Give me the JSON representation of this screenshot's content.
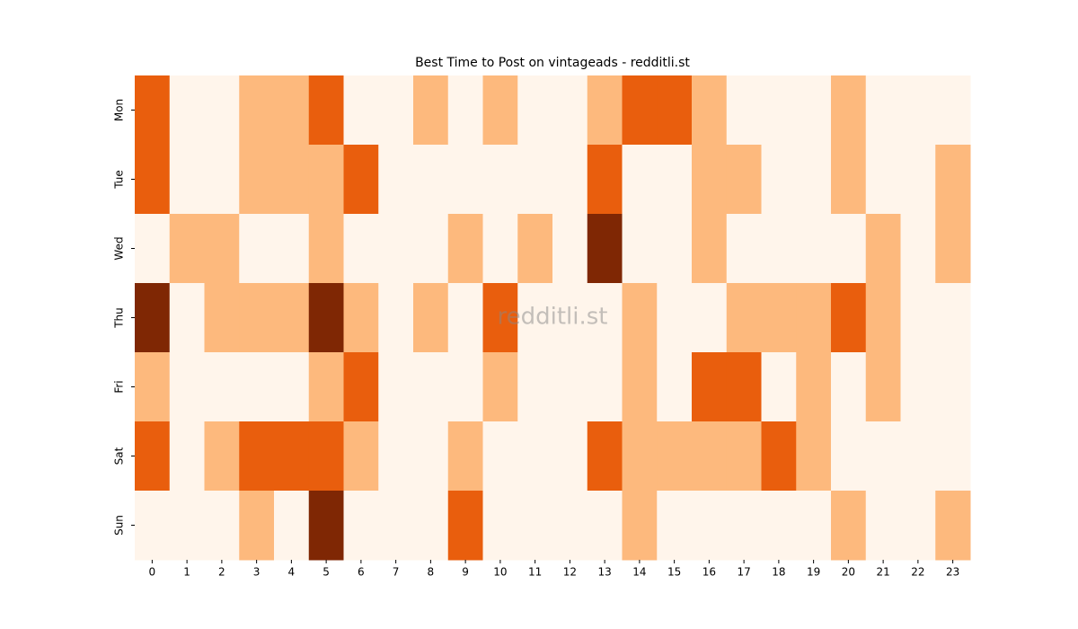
{
  "chart_data": {
    "type": "heatmap",
    "title": "Best Time to Post on vintageads - redditli.st",
    "watermark": "redditli.st",
    "x_categories": [
      "0",
      "1",
      "2",
      "3",
      "4",
      "5",
      "6",
      "7",
      "8",
      "9",
      "10",
      "11",
      "12",
      "13",
      "14",
      "15",
      "16",
      "17",
      "18",
      "19",
      "20",
      "21",
      "22",
      "23"
    ],
    "y_categories": [
      "Mon",
      "Tue",
      "Wed",
      "Thu",
      "Fri",
      "Sat",
      "Sun"
    ],
    "values": [
      [
        2,
        0,
        0,
        1,
        1,
        2,
        0,
        0,
        1,
        0,
        1,
        0,
        0,
        1,
        2,
        2,
        1,
        0,
        0,
        0,
        1,
        0,
        0,
        0
      ],
      [
        2,
        0,
        0,
        1,
        1,
        1,
        2,
        0,
        0,
        0,
        0,
        0,
        0,
        2,
        0,
        0,
        1,
        1,
        0,
        0,
        1,
        0,
        0,
        1
      ],
      [
        0,
        1,
        1,
        0,
        0,
        1,
        0,
        0,
        0,
        1,
        0,
        1,
        0,
        3,
        0,
        0,
        1,
        0,
        0,
        0,
        0,
        1,
        0,
        1
      ],
      [
        3,
        0,
        1,
        1,
        1,
        3,
        1,
        0,
        1,
        0,
        2,
        0,
        0,
        0,
        1,
        0,
        0,
        1,
        1,
        1,
        2,
        1,
        0,
        0
      ],
      [
        1,
        0,
        0,
        0,
        0,
        1,
        2,
        0,
        0,
        0,
        1,
        0,
        0,
        0,
        1,
        0,
        2,
        2,
        0,
        1,
        0,
        1,
        0,
        0
      ],
      [
        2,
        0,
        1,
        2,
        2,
        2,
        1,
        0,
        0,
        1,
        0,
        0,
        0,
        2,
        1,
        1,
        1,
        1,
        2,
        1,
        0,
        0,
        0,
        0
      ],
      [
        0,
        0,
        0,
        1,
        0,
        3,
        0,
        0,
        0,
        2,
        0,
        0,
        0,
        0,
        1,
        0,
        0,
        0,
        0,
        0,
        1,
        0,
        0,
        1
      ]
    ],
    "vlim": [
      0,
      3
    ],
    "colors": [
      "#fff5eb",
      "#fdb97d",
      "#e95e0d",
      "#7f2704"
    ]
  }
}
